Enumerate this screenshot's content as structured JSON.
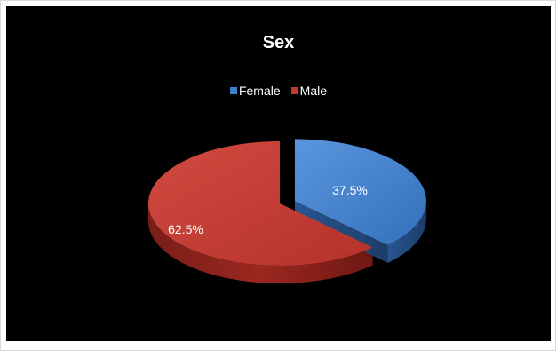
{
  "chart_data": {
    "type": "pie",
    "title": "Sex",
    "categories": [
      "Female",
      "Male"
    ],
    "values": [
      37.5,
      62.5
    ],
    "data_labels": [
      "37.5%",
      "62.5%"
    ],
    "colors": [
      "#3f7fcf",
      "#c0392f"
    ],
    "legend_position": "top",
    "style": "3d-exploded"
  }
}
